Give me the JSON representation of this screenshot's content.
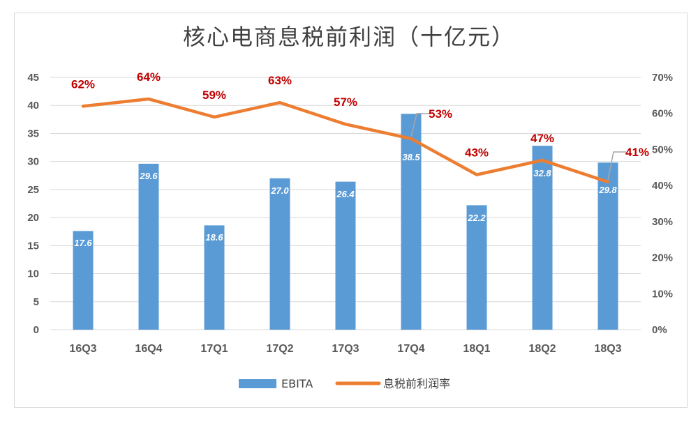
{
  "chart_data": {
    "type": "bar",
    "title": "核心电商息税前利润（十亿元）",
    "categories": [
      "16Q3",
      "16Q4",
      "17Q1",
      "17Q2",
      "17Q3",
      "17Q4",
      "18Q1",
      "18Q2",
      "18Q3"
    ],
    "series": [
      {
        "name": "EBITA",
        "type": "bar",
        "axis": "left",
        "color": "#5b9bd5",
        "values": [
          17.6,
          29.6,
          18.6,
          27.0,
          26.4,
          38.5,
          22.2,
          32.8,
          29.8
        ],
        "labels": [
          "17.6",
          "29.6",
          "18.6",
          "27.0",
          "26.4",
          "38.5",
          "22.2",
          "32.8",
          "29.8"
        ]
      },
      {
        "name": "息税前利润率",
        "type": "line",
        "axis": "right",
        "color": "#ed7d31",
        "values": [
          0.62,
          0.64,
          0.59,
          0.63,
          0.57,
          0.53,
          0.43,
          0.47,
          0.41
        ],
        "labels": [
          "62%",
          "64%",
          "59%",
          "63%",
          "57%",
          "53%",
          "43%",
          "47%",
          "41%"
        ]
      }
    ],
    "y_left": {
      "ylim": [
        0,
        45
      ],
      "ticks": [
        "0",
        "5",
        "10",
        "15",
        "20",
        "25",
        "30",
        "35",
        "40",
        "45"
      ]
    },
    "y_right": {
      "ylim": [
        0,
        0.7
      ],
      "ticks": [
        "0%",
        "10%",
        "20%",
        "30%",
        "40%",
        "50%",
        "60%",
        "70%"
      ]
    },
    "grid": true,
    "legend": "bottom",
    "label_color": "#c00000"
  }
}
